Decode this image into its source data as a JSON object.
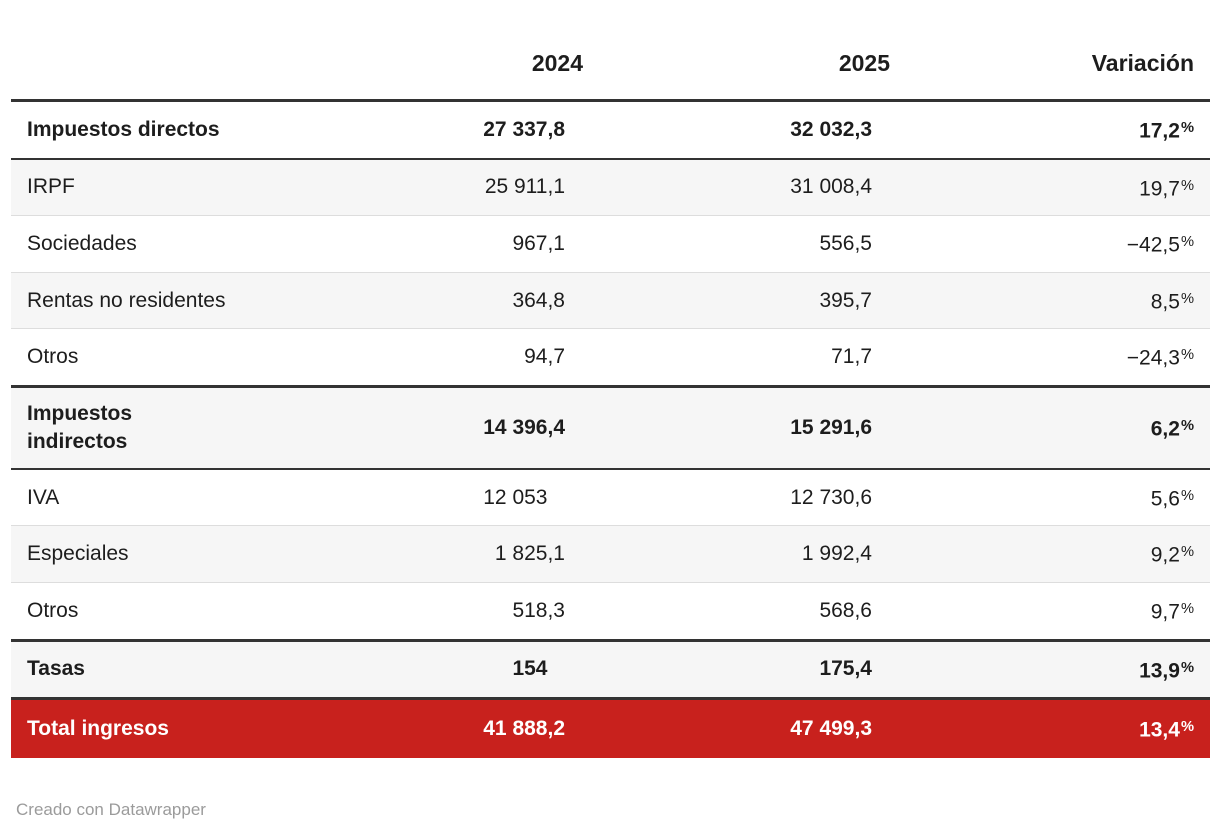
{
  "table": {
    "columns": [
      {
        "id": "label",
        "label": ""
      },
      {
        "id": "y2024",
        "label": "2024"
      },
      {
        "id": "y2025",
        "label": "2025"
      },
      {
        "id": "var",
        "label": "Variación"
      }
    ],
    "rows": [
      {
        "label": "Impuestos directos",
        "style": "section",
        "values": [
          "27 337,8",
          "32 032,3",
          "17,2%"
        ]
      },
      {
        "label": "IRPF",
        "style": "normal",
        "values": [
          "25 911,1",
          "31 008,4",
          "19,7%"
        ]
      },
      {
        "label": "Sociedades",
        "style": "normal",
        "values": [
          "967,1",
          "556,5",
          "−42,5%"
        ]
      },
      {
        "label": "Rentas no residentes",
        "style": "normal",
        "values": [
          "364,8",
          "395,7",
          "8,5%"
        ]
      },
      {
        "label": "Otros",
        "style": "normal",
        "values": [
          "94,7",
          "71,7",
          "−24,3%"
        ]
      },
      {
        "label": "Impuestos\nindirectos",
        "style": "section",
        "values": [
          "14 396,4",
          "15 291,6",
          "6,2%"
        ]
      },
      {
        "label": "IVA",
        "style": "normal",
        "values": [
          "12 053",
          "12 730,6",
          "5,6%"
        ]
      },
      {
        "label": "Especiales",
        "style": "normal",
        "values": [
          "1 825,1",
          "1 992,4",
          "9,2%"
        ]
      },
      {
        "label": "Otros",
        "style": "normal",
        "values": [
          "518,3",
          "568,6",
          "9,7%"
        ]
      },
      {
        "label": "Tasas",
        "style": "section",
        "values": [
          "154",
          "175,4",
          "13,9%"
        ]
      },
      {
        "label": "Total ingresos",
        "style": "total",
        "values": [
          "41 888,2",
          "47 499,3",
          "13,4%"
        ]
      }
    ]
  },
  "footer": {
    "credit": "Creado con Datawrapper"
  },
  "colors": {
    "total_row_bg": "#c8211d",
    "total_row_text": "#ffffff",
    "stripe_bg": "#f6f6f6",
    "border_dark": "#333333",
    "border_light": "#dddddd",
    "text": "#1d1d1d",
    "credit_text": "#9b9b9b"
  },
  "chart_data": {
    "type": "table",
    "title": "",
    "categories": [
      "Impuestos directos",
      "IRPF",
      "Sociedades",
      "Rentas no residentes",
      "Otros (directos)",
      "Impuestos indirectos",
      "IVA",
      "Especiales",
      "Otros (indirectos)",
      "Tasas",
      "Total ingresos"
    ],
    "series": [
      {
        "name": "2024",
        "values": [
          27337.8,
          25911.1,
          967.1,
          364.8,
          94.7,
          14396.4,
          12053,
          1825.1,
          518.3,
          154,
          41888.2
        ]
      },
      {
        "name": "2025",
        "values": [
          32032.3,
          31008.4,
          556.5,
          395.7,
          71.7,
          15291.6,
          12730.6,
          1992.4,
          568.6,
          175.4,
          47499.3
        ]
      },
      {
        "name": "Variación %",
        "values": [
          17.2,
          19.7,
          -42.5,
          8.5,
          -24.3,
          6.2,
          5.6,
          9.2,
          9.7,
          13.9,
          13.4
        ]
      }
    ],
    "notes": "Decimal comma formatting, thousands separated by space; credit: Creado con Datawrapper"
  }
}
